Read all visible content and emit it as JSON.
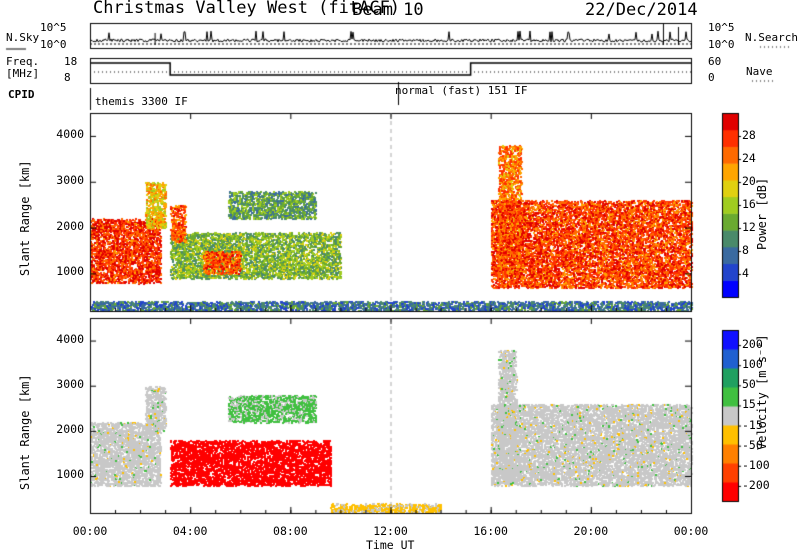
{
  "header": {
    "station": "Christmas Valley West (fitACF)",
    "beam": "Beam 10",
    "date": "22/Dec/2014"
  },
  "strip": {
    "nsky_label": "N.Sky",
    "nsky_top": "10^5",
    "nsky_bottom": "10^0",
    "nsearch_label": "N.Search",
    "nsearch_top": "10^5",
    "nsearch_bottom": "10^0",
    "freq_label": "Freq.",
    "freq_unit": "[MHz]",
    "freq_top": "18",
    "freq_bottom": "8",
    "nave_label": "Nave",
    "nave_top": "60",
    "nave_bottom": "0",
    "cpid_label": "CPID",
    "cpid_first": "themis 3300 IF",
    "cpid_second": "normal (fast) 151 IF"
  },
  "axes": {
    "xlabel": "Time UT",
    "x_ticks": [
      "00:00",
      "04:00",
      "08:00",
      "12:00",
      "16:00",
      "20:00",
      "00:00"
    ],
    "ylabel": "Slant Range [km]",
    "y_ticks": [
      "1000",
      "2000",
      "3000",
      "4000"
    ]
  },
  "colorbars": {
    "power_title": "Power [dB]",
    "power_ticks": [
      "4",
      "8",
      "12",
      "16",
      "20",
      "24",
      "28"
    ],
    "velocity_title": "Velocity [m s⁻¹]",
    "velocity_ticks": [
      "200",
      "100",
      "50",
      "15",
      "-15",
      "-50",
      "-100",
      "-200"
    ]
  },
  "chart_data": [
    {
      "type": "heatmap",
      "panel": "power",
      "x_range_hours": [
        0,
        24
      ],
      "y_range_km": [
        180,
        4500
      ],
      "colorbar": {
        "label": "Power [dB]",
        "range": [
          0,
          32
        ],
        "ticks": [
          4,
          8,
          12,
          16,
          20,
          24,
          28
        ],
        "colors": [
          "#0000ff",
          "#2244cc",
          "#3a6aa0",
          "#4a8a6a",
          "#6aaa30",
          "#a0cc20",
          "#e0d010",
          "#ffa500",
          "#ff6a00",
          "#ff3000",
          "#e00000"
        ]
      },
      "regions": [
        {
          "t": [
            0.0,
            2.8
          ],
          "r": [
            800,
            2200
          ],
          "power_db": 28
        },
        {
          "t": [
            2.2,
            3.0
          ],
          "r": [
            2000,
            3000
          ],
          "power_db": 20
        },
        {
          "t": [
            3.2,
            10.0
          ],
          "r": [
            900,
            1900
          ],
          "power_db": 14
        },
        {
          "t": [
            3.2,
            3.8
          ],
          "r": [
            1700,
            2500
          ],
          "power_db": 26
        },
        {
          "t": [
            4.5,
            6.0
          ],
          "r": [
            1000,
            1500
          ],
          "power_db": 26
        },
        {
          "t": [
            5.5,
            9.0
          ],
          "r": [
            2200,
            2800
          ],
          "power_db": 12
        },
        {
          "t": [
            0.0,
            24.0
          ],
          "r": [
            200,
            400
          ],
          "power_db": 8
        },
        {
          "t": [
            16.3,
            17.2
          ],
          "r": [
            1000,
            3800
          ],
          "power_db": 24
        },
        {
          "t": [
            16.0,
            24.0
          ],
          "r": [
            700,
            2600
          ],
          "power_db": 27
        }
      ]
    },
    {
      "type": "heatmap",
      "panel": "velocity",
      "x_range_hours": [
        0,
        24
      ],
      "y_range_km": [
        180,
        4500
      ],
      "colorbar": {
        "label": "Velocity [m s-1]",
        "range": [
          -250,
          250
        ],
        "ticks": [
          200,
          100,
          50,
          15,
          -15,
          -50,
          -100,
          -200
        ],
        "colors": [
          "#1010ff",
          "#2060d0",
          "#20a060",
          "#40c040",
          "#c8c8c8",
          "#ffc000",
          "#ff8000",
          "#ff4000",
          "#ff0000"
        ]
      },
      "regions": [
        {
          "t": [
            0.0,
            2.8
          ],
          "r": [
            800,
            2200
          ],
          "velocity": 0
        },
        {
          "t": [
            2.2,
            3.0
          ],
          "r": [
            2000,
            3000
          ],
          "velocity": 0
        },
        {
          "t": [
            3.2,
            9.6
          ],
          "r": [
            800,
            1800
          ],
          "velocity": -250
        },
        {
          "t": [
            5.5,
            9.0
          ],
          "r": [
            2200,
            2800
          ],
          "velocity": 40
        },
        {
          "t": [
            9.6,
            14.0
          ],
          "r": [
            200,
            400
          ],
          "velocity": -40
        },
        {
          "t": [
            16.3,
            17.0
          ],
          "r": [
            1000,
            3800
          ],
          "velocity": 0
        },
        {
          "t": [
            16.0,
            24.0
          ],
          "r": [
            800,
            2600
          ],
          "velocity": 0
        }
      ]
    }
  ]
}
